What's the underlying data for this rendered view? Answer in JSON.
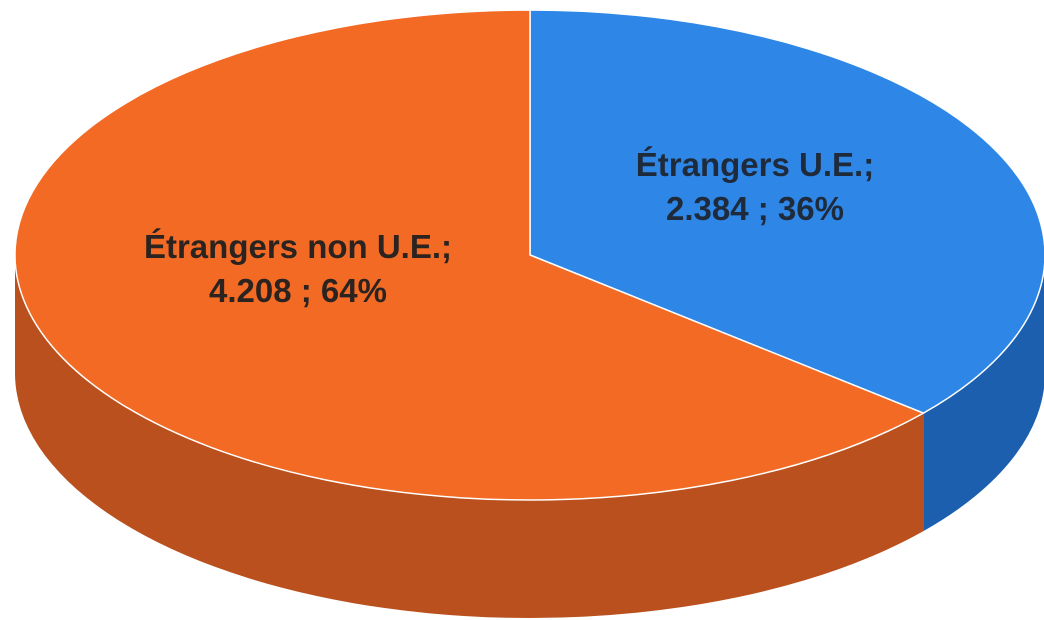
{
  "chart_data": {
    "type": "pie",
    "title": "",
    "legend": "none",
    "slices": [
      {
        "name": "Étrangers U.E.",
        "value": 2384,
        "value_label": "2.384",
        "percent": 36,
        "percent_label": "36%",
        "label_line1": "Étrangers U.E.;",
        "label_line2": "2.384 ; 36%",
        "color": "#2E86E6",
        "side_color": "#1B5FAE",
        "label_color": "#1F2A3A"
      },
      {
        "name": "Étrangers non U.E.",
        "value": 4208,
        "value_label": "4.208",
        "percent": 64,
        "percent_label": "64%",
        "label_line1": "Étrangers non U.E.;",
        "label_line2": "4.208 ; 64%",
        "color": "#F26A24",
        "side_color": "#B9501D",
        "label_color": "#2B2320"
      }
    ]
  }
}
